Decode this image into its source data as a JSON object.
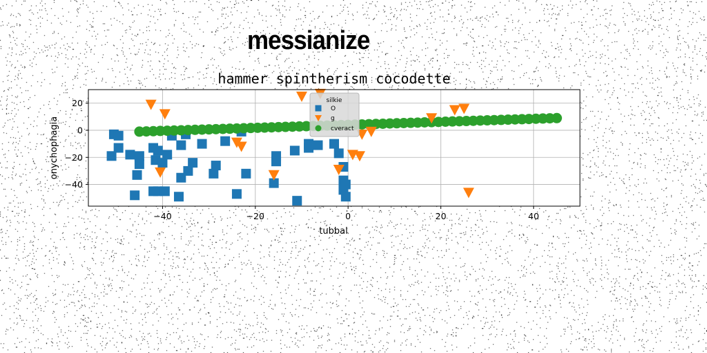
{
  "page": {
    "heading": "messianize",
    "background": "#ffffff",
    "noise_color": "#000000"
  },
  "chart_data": {
    "type": "scatter",
    "title": "hammer spintherism cocodette",
    "xlabel": "tubbal",
    "ylabel": "onychophagia",
    "xlim": [
      -56,
      50
    ],
    "ylim": [
      -56,
      30
    ],
    "xticks": [
      -40,
      -20,
      0,
      20,
      40
    ],
    "yticks": [
      -40,
      -20,
      0,
      20
    ],
    "grid": true,
    "legend": {
      "title": "silkie",
      "placement": "upper-center"
    },
    "series": [
      {
        "name": "O",
        "marker": "square",
        "color": "#1f77b4",
        "points": [
          [
            -51,
            -19
          ],
          [
            -50.5,
            -3
          ],
          [
            -49.5,
            -4
          ],
          [
            -49.5,
            -13
          ],
          [
            -47,
            -18
          ],
          [
            -46,
            -48
          ],
          [
            -45.5,
            -33
          ],
          [
            -45,
            -19
          ],
          [
            -45,
            -25
          ],
          [
            -42,
            -13
          ],
          [
            -42,
            -45
          ],
          [
            -41.5,
            -22
          ],
          [
            -41,
            -15
          ],
          [
            -41,
            -45
          ],
          [
            -40,
            -24
          ],
          [
            -39.5,
            -45
          ],
          [
            -39,
            -18
          ],
          [
            -38,
            -4
          ],
          [
            -36.5,
            -49
          ],
          [
            -36,
            -11
          ],
          [
            -36,
            -35
          ],
          [
            -35,
            -3
          ],
          [
            -34.5,
            -30
          ],
          [
            -33.5,
            -24
          ],
          [
            -31.5,
            -10
          ],
          [
            -29,
            -32
          ],
          [
            -28.5,
            -26
          ],
          [
            -26.5,
            -8
          ],
          [
            -24,
            -47
          ],
          [
            -23,
            -1
          ],
          [
            -22,
            -32
          ],
          [
            -16,
            -39
          ],
          [
            -15.5,
            -23
          ],
          [
            -15.5,
            -19
          ],
          [
            -11.5,
            -15
          ],
          [
            -11,
            -52
          ],
          [
            -8.5,
            -10
          ],
          [
            -8.5,
            -13
          ],
          [
            -6.5,
            -11
          ],
          [
            -3,
            -10
          ],
          [
            -2,
            -17
          ],
          [
            -1,
            -27
          ],
          [
            -1,
            -37
          ],
          [
            -0.5,
            -40
          ],
          [
            -1,
            -44
          ],
          [
            -0.5,
            -49
          ]
        ]
      },
      {
        "name": "g",
        "marker": "triangle-down",
        "color": "#ff7f0e",
        "points": [
          [
            -42.5,
            19
          ],
          [
            -40.5,
            -31
          ],
          [
            -39.5,
            12
          ],
          [
            -24,
            -9
          ],
          [
            -23,
            -12
          ],
          [
            -16,
            -33
          ],
          [
            -10,
            25
          ],
          [
            -6,
            27
          ],
          [
            -2,
            -29
          ],
          [
            1,
            -18
          ],
          [
            2.5,
            -19
          ],
          [
            3,
            -3
          ],
          [
            5,
            -1
          ],
          [
            18,
            9
          ],
          [
            23,
            15
          ],
          [
            25,
            16
          ],
          [
            26,
            -46
          ]
        ]
      },
      {
        "name": "cveract",
        "marker": "circle",
        "color": "#2ca02c",
        "linear": {
          "x_start": -45,
          "x_end": 45,
          "y_start": -1,
          "y_end": 9,
          "count": 61
        }
      }
    ]
  }
}
